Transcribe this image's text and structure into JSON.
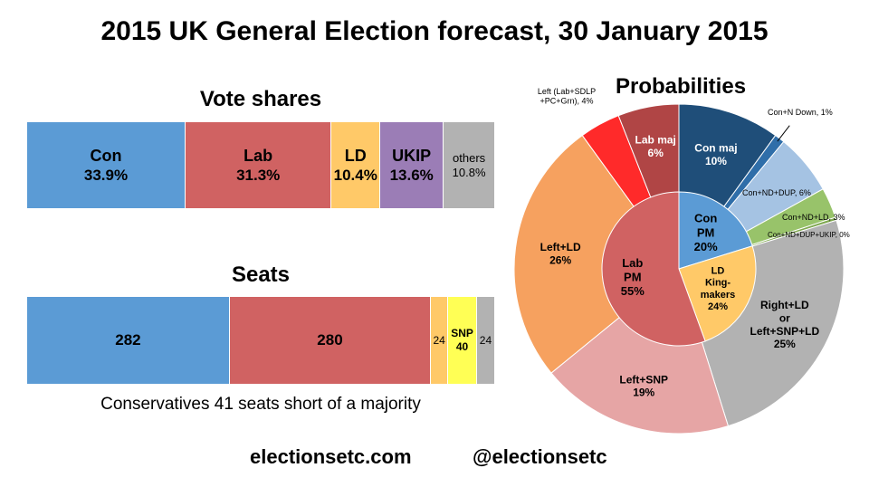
{
  "title": "2015 UK General Election forecast, 30 January 2015",
  "vote_shares": {
    "title": "Vote shares"
  },
  "seats_section": {
    "title": "Seats"
  },
  "note": "Conservatives 41 seats short of a majority",
  "footer": {
    "site": "electionsetc.com",
    "handle": "@electionsetc"
  },
  "colors": {
    "con": "#5b9bd5",
    "lab": "#d06262",
    "ld": "#ffc968",
    "ukip": "#9b7db6",
    "others": "#b2b2b2",
    "snp": "#ffff55"
  },
  "chart_data": [
    {
      "type": "bar",
      "title": "Vote shares",
      "stacked": true,
      "series": [
        {
          "name": "Con",
          "value": 33.9,
          "label": "33.9%",
          "color": "#5b9bd5"
        },
        {
          "name": "Lab",
          "value": 31.3,
          "label": "31.3%",
          "color": "#d06262"
        },
        {
          "name": "LD",
          "value": 10.4,
          "label": "10.4%",
          "color": "#ffc968"
        },
        {
          "name": "UKIP",
          "value": 13.6,
          "label": "13.6%",
          "color": "#9b7db6"
        },
        {
          "name": "others",
          "value": 10.8,
          "label": "10.8%",
          "color": "#b2b2b2"
        }
      ]
    },
    {
      "type": "bar",
      "title": "Seats",
      "stacked": true,
      "series": [
        {
          "name": "",
          "value": 282,
          "label": "282",
          "color": "#5b9bd5"
        },
        {
          "name": "",
          "value": 280,
          "label": "280",
          "color": "#d06262"
        },
        {
          "name": "",
          "value": 24,
          "label": "24",
          "color": "#ffc968"
        },
        {
          "name": "SNP",
          "value": 40,
          "label": "40",
          "color": "#ffff55"
        },
        {
          "name": "",
          "value": 24,
          "label": "24",
          "color": "#b2b2b2"
        }
      ]
    },
    {
      "type": "pie",
      "title": "Probabilities",
      "outer": [
        {
          "label": "Con maj",
          "pct": "10%",
          "value": 10,
          "color": "#1f4e79",
          "text_color": "#ffffff"
        },
        {
          "label": "Con+N Down, 1%",
          "value": 1,
          "color": "#2f6ea9",
          "text_color": "#000000"
        },
        {
          "label": "Con+ND+DUP, 6%",
          "value": 6,
          "color": "#a5c3e3",
          "text_color": "#000000"
        },
        {
          "label": "Con+ND+LD, 3%",
          "value": 3,
          "color": "#98c36a",
          "text_color": "#000000"
        },
        {
          "label": "Con+ND+DUP+UKIP, 0%",
          "value": 0.3,
          "color": "#7fa850",
          "text_color": "#000000"
        },
        {
          "label": "Right+LD\nor\nLeft+SNP+LD",
          "pct": "25%",
          "value": 25,
          "color": "#b2b2b2",
          "text_color": "#000000"
        },
        {
          "label": "Left+SNP",
          "pct": "19%",
          "value": 19,
          "color": "#e6a5a5",
          "text_color": "#000000"
        },
        {
          "label": "Left+LD",
          "pct": "26%",
          "value": 26,
          "color": "#f6a15f",
          "text_color": "#000000"
        },
        {
          "label": "Left (Lab+SDLP\n+PC+Grn), 4%",
          "value": 4,
          "color": "#ff2a2a",
          "text_color": "#000000"
        },
        {
          "label": "Lab maj",
          "pct": "6%",
          "value": 6,
          "color": "#b04545",
          "text_color": "#ffffff"
        }
      ],
      "inner": [
        {
          "label": "Con\nPM",
          "pct": "20%",
          "value": 20,
          "color": "#5b9bd5"
        },
        {
          "label": "LD\nKing-\nmakers",
          "pct": "24%",
          "value": 24,
          "color": "#ffc968"
        },
        {
          "label": "Lab\nPM",
          "pct": "55%",
          "value": 55,
          "color": "#d06262"
        }
      ]
    }
  ]
}
